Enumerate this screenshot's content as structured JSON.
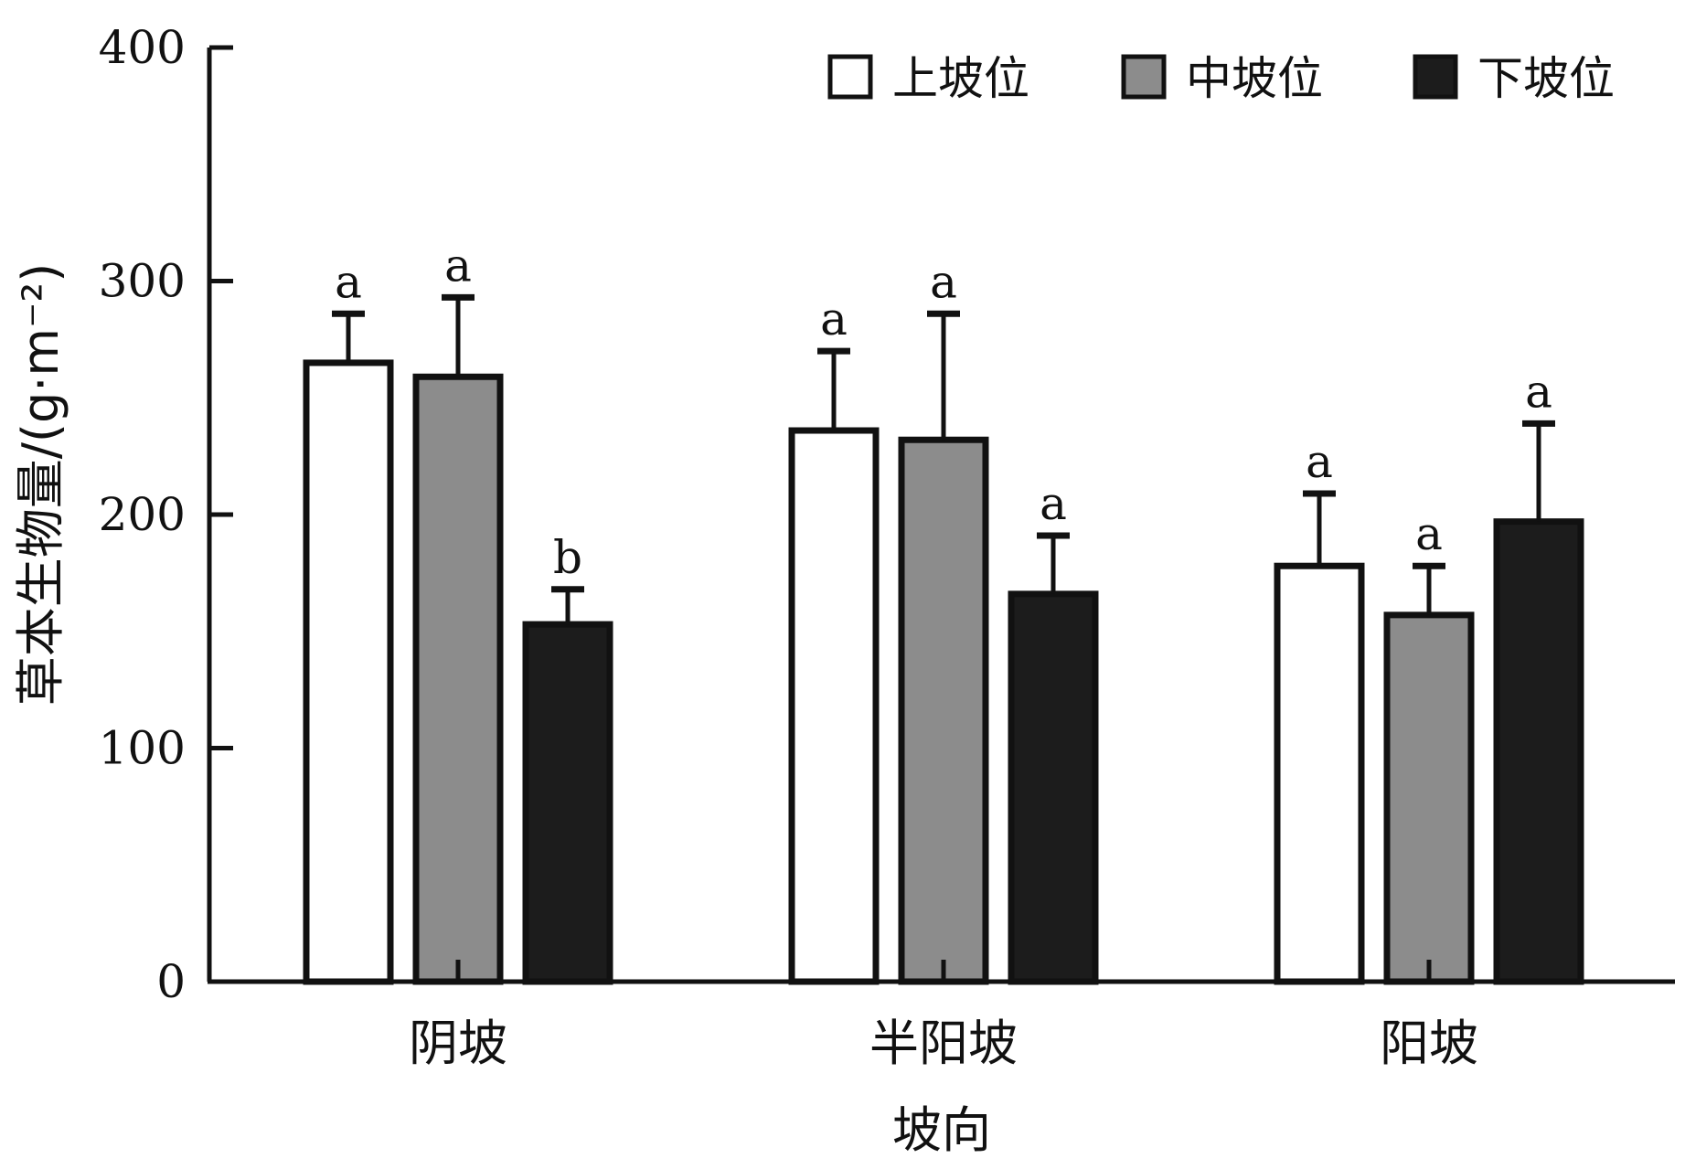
{
  "chart_data": {
    "type": "bar",
    "categories": [
      "阴坡",
      "半阳坡",
      "阳坡"
    ],
    "series": [
      {
        "name": "上坡位",
        "color": "#ffffff",
        "values": [
          265,
          236,
          178
        ],
        "errors": [
          21,
          34,
          31
        ],
        "letters": [
          "a",
          "a",
          "a"
        ]
      },
      {
        "name": "中坡位",
        "color": "#8c8c8c",
        "values": [
          259,
          232,
          157
        ],
        "errors": [
          34,
          54,
          21
        ],
        "letters": [
          "a",
          "a",
          "a"
        ]
      },
      {
        "name": "下坡位",
        "color": "#1c1c1c",
        "values": [
          153,
          166,
          197
        ],
        "errors": [
          15,
          25,
          42
        ],
        "letters": [
          "b",
          "a",
          "a"
        ]
      }
    ],
    "xlabel": "坡向",
    "ylabel": "草本生物量/(g·m⁻²)",
    "ylim": [
      0,
      400
    ],
    "yticks": [
      0,
      100,
      200,
      300,
      400
    ],
    "legend_position": "top-right",
    "grid": false
  }
}
